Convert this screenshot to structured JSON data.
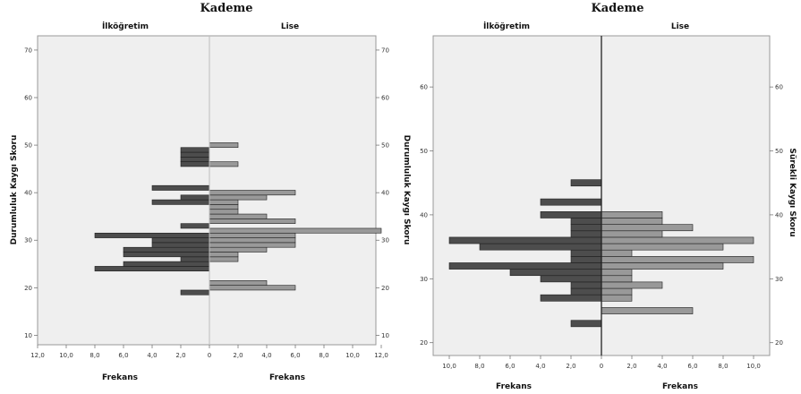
{
  "chart_data": [
    {
      "type": "bar",
      "title": "Kademe",
      "left_group": "İlköğretim",
      "right_group": "Lise",
      "ylabel_left": "Durumluluk Kaygı Skoru",
      "ylabel_right": "Durumluluk Kaygı Skoru",
      "xlabel_left": "Frekans",
      "xlabel_right": "Frekans",
      "ylim": [
        8,
        73
      ],
      "y_ticks": [
        10,
        20,
        30,
        40,
        50,
        60,
        70
      ],
      "y_tick_labels": [
        "10",
        "20",
        "30",
        "40",
        "50",
        "60",
        "70"
      ],
      "xlim": [
        0,
        12
      ],
      "x_ticks_left": [
        "12,0",
        "10,0",
        "8,0",
        "6,0",
        "4,0",
        "2,0",
        "0"
      ],
      "x_ticks_right": [
        "0",
        "2,0",
        "4,0",
        "6,0",
        "8,0",
        "10,0",
        "12,0"
      ],
      "bin_width": 1,
      "series": [
        {
          "name": "İlköğretim",
          "color": "#4d4d4d",
          "points": [
            [
              19,
              2
            ],
            [
              24,
              8
            ],
            [
              25,
              6
            ],
            [
              26,
              2
            ],
            [
              27,
              6
            ],
            [
              28,
              6
            ],
            [
              29,
              4
            ],
            [
              30,
              4
            ],
            [
              31,
              8
            ],
            [
              33,
              2
            ],
            [
              38,
              4
            ],
            [
              39,
              2
            ],
            [
              41,
              4
            ],
            [
              46,
              2
            ],
            [
              47,
              2
            ],
            [
              48,
              2
            ],
            [
              49,
              2
            ]
          ]
        },
        {
          "name": "Lise",
          "color": "#999999",
          "points": [
            [
              20,
              6
            ],
            [
              21,
              4
            ],
            [
              26,
              2
            ],
            [
              27,
              2
            ],
            [
              28,
              4
            ],
            [
              29,
              6
            ],
            [
              30,
              6
            ],
            [
              31,
              6
            ],
            [
              32,
              12
            ],
            [
              34,
              6
            ],
            [
              35,
              4
            ],
            [
              36,
              2
            ],
            [
              37,
              2
            ],
            [
              38,
              2
            ],
            [
              39,
              4
            ],
            [
              40,
              6
            ],
            [
              46,
              2
            ],
            [
              50,
              2
            ]
          ]
        }
      ]
    },
    {
      "type": "bar",
      "title": "Kademe",
      "left_group": "İlköğretim",
      "right_group": "Lise",
      "ylabel_right": "Sürekli Kaygı Skoru",
      "xlabel_left": "Frekans",
      "xlabel_right": "Frekans",
      "ylim": [
        18,
        68
      ],
      "y_ticks": [
        20,
        30,
        40,
        50,
        60
      ],
      "y_tick_labels": [
        "20",
        "30",
        "40",
        "50",
        "60"
      ],
      "xlim": [
        0,
        10
      ],
      "x_ticks_left": [
        "10,0",
        "8,0",
        "6,0",
        "4,0",
        "2,0",
        "0"
      ],
      "x_ticks_right": [
        "0",
        "2,0",
        "4,0",
        "6,0",
        "8,0",
        "10,0"
      ],
      "bin_width": 1,
      "series": [
        {
          "name": "İlköğretim",
          "color": "#4d4d4d",
          "points": [
            [
              23,
              2
            ],
            [
              27,
              4
            ],
            [
              28,
              2
            ],
            [
              29,
              2
            ],
            [
              30,
              4
            ],
            [
              31,
              6
            ],
            [
              32,
              10
            ],
            [
              33,
              2
            ],
            [
              34,
              2
            ],
            [
              35,
              8
            ],
            [
              36,
              10
            ],
            [
              37,
              2
            ],
            [
              38,
              2
            ],
            [
              39,
              2
            ],
            [
              40,
              4
            ],
            [
              42,
              4
            ],
            [
              45,
              2
            ]
          ]
        },
        {
          "name": "Lise",
          "color": "#999999",
          "points": [
            [
              25,
              6
            ],
            [
              27,
              2
            ],
            [
              28,
              2
            ],
            [
              29,
              4
            ],
            [
              30,
              2
            ],
            [
              31,
              2
            ],
            [
              32,
              8
            ],
            [
              33,
              10
            ],
            [
              34,
              2
            ],
            [
              35,
              8
            ],
            [
              36,
              10
            ],
            [
              37,
              4
            ],
            [
              38,
              6
            ],
            [
              39,
              4
            ],
            [
              40,
              4
            ]
          ]
        }
      ]
    }
  ]
}
